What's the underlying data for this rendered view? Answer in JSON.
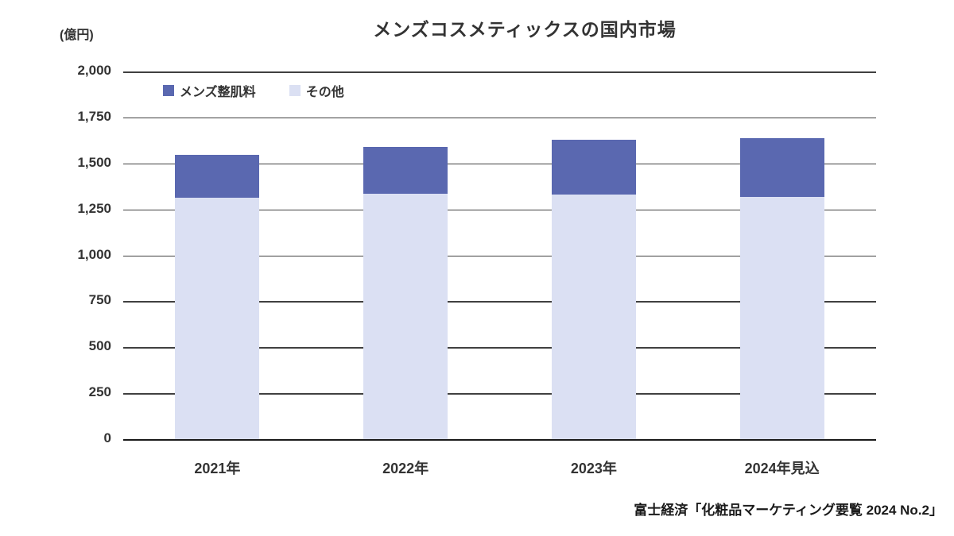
{
  "chart": {
    "title": "メンズコスメティックスの国内市場",
    "unit_label": "(億円)",
    "source": "富士経済「化粧品マーケティング要覧 2024 No.2」",
    "legend": [
      {
        "label": "メンズ整肌料",
        "color": "#5a68b0"
      },
      {
        "label": "その他",
        "color": "#dbe0f3"
      }
    ],
    "colors": {
      "mens_skin_care": "#5a68b0",
      "other": "#dbe0f3",
      "gridline": "#404040",
      "axis": "#1a1a1a",
      "text": "#333333"
    }
  },
  "chart_data": {
    "type": "bar",
    "stacked": true,
    "title": "メンズコスメティックスの国内市場",
    "xlabel": "",
    "ylabel": "(億円)",
    "categories": [
      "2021年",
      "2022年",
      "2023年",
      "2024年見込"
    ],
    "series": [
      {
        "name": "メンズ整肌料",
        "color": "#5a68b0",
        "values": [
          233,
          256,
          300,
          318
        ]
      },
      {
        "name": "その他",
        "color": "#dbe0f3",
        "values": [
          1315,
          1335,
          1329,
          1318
        ]
      }
    ],
    "totals": [
      1548,
      1591,
      1629,
      1636
    ],
    "ylim": [
      0,
      2000
    ],
    "ytick_step": 250,
    "grid": true,
    "legend_position": "inside-top-left",
    "source": "富士経済「化粧品マーケティング要覧 2024 No.2」"
  }
}
